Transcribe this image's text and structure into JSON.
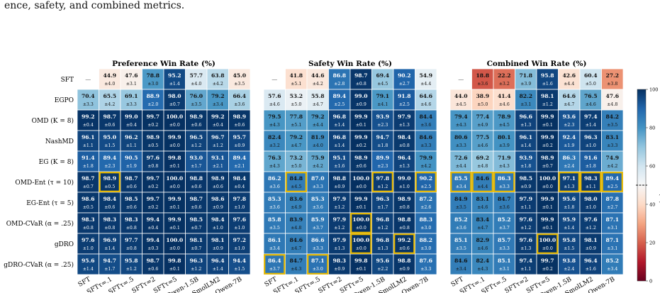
{
  "caption": "ence, safety, and combined metrics.",
  "row_labels": [
    "SFT",
    "EGPO",
    "OMD (K = 8)",
    "NashMD",
    "EG (K = 8)",
    "OMD-Ent (τ = 10)",
    "EG-Ent (τ = 5)",
    "OMD-CVaR (α = .25)",
    "gDRO",
    "gDRO-CVaR (α = .25)"
  ],
  "col_labels": [
    "SFT",
    "SFTτ=.1",
    "SFTτ=.5",
    "SFTτ=2",
    "SFTτ=5",
    "Qwen-1.5B",
    "SmolLM2",
    "Qwen-7B"
  ],
  "colorbar": {
    "label": "Win rate (%)",
    "ticks": [
      "0",
      "20",
      "40",
      "60",
      "80",
      "100"
    ],
    "range": [
      0,
      100
    ],
    "midline": 50
  },
  "highlight_color": "#e6b800",
  "chart_data": [
    {
      "type": "heatmap",
      "title": "Preference Win Rate (%)",
      "values": [
        [
          null,
          44.9,
          47.6,
          78.8,
          95.2,
          57.7,
          63.8,
          45.0
        ],
        [
          70.4,
          65.5,
          69.1,
          88.9,
          98.0,
          76.0,
          79.2,
          66.4
        ],
        [
          99.2,
          98.7,
          99.0,
          99.7,
          100.0,
          98.9,
          99.2,
          98.9
        ],
        [
          96.1,
          95.0,
          96.2,
          98.9,
          99.9,
          96.5,
          96.7,
          95.7
        ],
        [
          91.4,
          89.4,
          90.5,
          97.6,
          99.8,
          93.0,
          93.1,
          89.4
        ],
        [
          98.7,
          98.9,
          98.7,
          99.7,
          100.0,
          98.8,
          98.9,
          98.4
        ],
        [
          98.6,
          98.4,
          98.5,
          99.7,
          99.9,
          98.7,
          98.6,
          97.8
        ],
        [
          98.3,
          98.3,
          98.3,
          99.4,
          99.9,
          98.5,
          98.4,
          97.6
        ],
        [
          97.6,
          96.9,
          97.7,
          99.4,
          100.0,
          98.1,
          98.1,
          97.2
        ],
        [
          95.6,
          94.7,
          95.8,
          98.7,
          99.8,
          96.3,
          96.4,
          94.4
        ]
      ],
      "errors": [
        [
          "—",
          "±4.0",
          "±3.1",
          "±3.0",
          "±1.4",
          "±4.0",
          "±4.2",
          "±3.5"
        ],
        [
          "±3.3",
          "±4.2",
          "±3.3",
          "±2.0",
          "±0.7",
          "±3.5",
          "±3.4",
          "±3.6"
        ],
        [
          "±0.4",
          "±0.6",
          "±0.4",
          "±0.2",
          "±0.0",
          "±0.6",
          "±0.4",
          "±0.6"
        ],
        [
          "±1.1",
          "±1.5",
          "±1.1",
          "±0.5",
          "±0.0",
          "±1.2",
          "±1.2",
          "±0.9"
        ],
        [
          "±1.8",
          "±2.3",
          "±1.9",
          "±0.8",
          "±0.1",
          "±1.7",
          "±2.1",
          "±2.1"
        ],
        [
          "±0.7",
          "±0.5",
          "±0.6",
          "±0.2",
          "±0.0",
          "±0.6",
          "±0.6",
          "±0.4"
        ],
        [
          "±0.5",
          "±0.6",
          "±0.6",
          "±0.2",
          "±0.1",
          "±0.6",
          "±0.9",
          "±1.0"
        ],
        [
          "±0.8",
          "±0.8",
          "±0.8",
          "±0.4",
          "±0.1",
          "±0.7",
          "±1.0",
          "±1.0"
        ],
        [
          "±1.0",
          "±1.4",
          "±0.8",
          "±0.3",
          "±0.0",
          "±0.7",
          "±0.9",
          "±1.0"
        ],
        [
          "±1.4",
          "±1.7",
          "±1.2",
          "±0.6",
          "±0.1",
          "±1.2",
          "±1.4",
          "±1.5"
        ]
      ],
      "highlights": [
        [
          5,
          1
        ]
      ]
    },
    {
      "type": "heatmap",
      "title": "Safety Win Rate (%)",
      "values": [
        [
          null,
          41.8,
          44.6,
          86.8,
          98.7,
          69.4,
          90.2,
          54.9
        ],
        [
          57.6,
          53.2,
          55.8,
          89.4,
          99.0,
          79.1,
          91.8,
          64.6
        ],
        [
          79.5,
          77.8,
          79.2,
          96.8,
          99.9,
          93.9,
          97.9,
          84.4
        ],
        [
          82.4,
          79.2,
          81.9,
          96.8,
          99.9,
          94.7,
          98.4,
          84.6
        ],
        [
          76.3,
          73.2,
          75.9,
          95.1,
          98.9,
          89.9,
          96.4,
          79.9
        ],
        [
          86.2,
          84.8,
          87.0,
          98.8,
          100.0,
          97.8,
          99.0,
          90.2
        ],
        [
          85.3,
          83.6,
          85.3,
          97.9,
          99.9,
          96.3,
          98.9,
          87.2
        ],
        [
          85.8,
          83.9,
          85.9,
          97.9,
          100.0,
          96.8,
          98.8,
          88.3
        ],
        [
          86.1,
          84.6,
          86.6,
          97.9,
          100.0,
          96.8,
          99.2,
          88.2
        ],
        [
          86.4,
          84.7,
          87.1,
          98.3,
          99.8,
          95.6,
          98.8,
          87.6
        ]
      ],
      "errors": [
        [
          "—",
          "±5.1",
          "±4.2",
          "±2.8",
          "±0.8",
          "±4.5",
          "±2.7",
          "±4.4"
        ],
        [
          "±4.6",
          "±5.0",
          "±4.7",
          "±2.5",
          "±0.9",
          "±4.1",
          "±2.5",
          "±4.6"
        ],
        [
          "±4.3",
          "±5.1",
          "±4.4",
          "±1.4",
          "±0.1",
          "±2.3",
          "±1.3",
          "±3.6"
        ],
        [
          "±3.2",
          "±4.7",
          "±4.0",
          "±1.4",
          "±0.2",
          "±1.8",
          "±0.8",
          "±3.3"
        ],
        [
          "±4.3",
          "±5.0",
          "±4.2",
          "±1.6",
          "±0.6",
          "±2.3",
          "±1.3",
          "±4.2"
        ],
        [
          "±3.6",
          "±4.5",
          "±3.3",
          "±0.9",
          "±0.0",
          "±1.2",
          "±1.0",
          "±2.5"
        ],
        [
          "±3.6",
          "±4.9",
          "±3.6",
          "±1.2",
          "±0.1",
          "±1.7",
          "±0.8",
          "±2.6"
        ],
        [
          "±3.5",
          "±4.8",
          "±3.7",
          "±1.2",
          "±0.0",
          "±1.2",
          "±0.8",
          "±3.0"
        ],
        [
          "±3.4",
          "±4.7",
          "±3.3",
          "±1.3",
          "±0.0",
          "±1.3",
          "±0.6",
          "±3.0"
        ],
        [
          "±3.7",
          "±4.3",
          "±3.0",
          "±0.9",
          "±0.1",
          "±2.2",
          "±0.9",
          "±3.3"
        ]
      ],
      "highlights": [
        [
          5,
          1
        ],
        [
          5,
          5
        ],
        [
          5,
          7
        ],
        [
          7,
          4
        ],
        [
          8,
          4
        ],
        [
          8,
          6
        ],
        [
          9,
          0
        ],
        [
          9,
          2
        ]
      ]
    },
    {
      "type": "heatmap",
      "title": "Combined Win Rate (%)",
      "values": [
        [
          null,
          18.8,
          22.2,
          71.8,
          95.8,
          42.6,
          60.4,
          27.2
        ],
        [
          44.0,
          38.9,
          41.4,
          82.2,
          98.1,
          64.6,
          76.5,
          47.6
        ],
        [
          79.4,
          77.4,
          78.9,
          96.6,
          99.9,
          93.6,
          97.4,
          84.2
        ],
        [
          80.6,
          77.5,
          80.1,
          96.1,
          99.9,
          92.4,
          96.3,
          83.1
        ],
        [
          72.6,
          69.2,
          71.9,
          93.9,
          98.9,
          86.3,
          91.6,
          74.9
        ],
        [
          85.5,
          84.6,
          86.3,
          98.5,
          100.0,
          97.1,
          98.3,
          89.4
        ],
        [
          84.9,
          83.1,
          84.7,
          97.9,
          99.9,
          95.6,
          98.0,
          87.8
        ],
        [
          85.2,
          83.4,
          85.2,
          97.6,
          99.9,
          95.9,
          97.6,
          87.1
        ],
        [
          85.1,
          82.9,
          85.7,
          97.6,
          100.0,
          95.8,
          98.1,
          87.1
        ],
        [
          84.6,
          82.4,
          85.1,
          97.4,
          99.7,
          93.8,
          96.4,
          85.2
        ]
      ],
      "errors": [
        [
          "—",
          "±3.6",
          "±3.2",
          "±3.9",
          "±1.6",
          "±4.4",
          "±5.0",
          "±3.8"
        ],
        [
          "±4.5",
          "±5.0",
          "±4.6",
          "±3.1",
          "±1.2",
          "±4.7",
          "±4.6",
          "±4.8"
        ],
        [
          "±4.3",
          "±4.9",
          "±4.5",
          "±1.3",
          "±0.1",
          "±2.3",
          "±1.4",
          "±3.5"
        ],
        [
          "±3.3",
          "±4.6",
          "±3.9",
          "±1.4",
          "±0.2",
          "±1.9",
          "±1.0",
          "±3.3"
        ],
        [
          "±4.4",
          "±4.8",
          "±4.3",
          "±1.8",
          "±0.7",
          "±2.4",
          "±1.8",
          "±4.2"
        ],
        [
          "±3.4",
          "±4.4",
          "±3.3",
          "±0.9",
          "±0.0",
          "±1.3",
          "±1.1",
          "±2.5"
        ],
        [
          "±3.5",
          "±4.6",
          "±3.6",
          "±1.1",
          "±0.1",
          "±1.8",
          "±1.0",
          "±2.7"
        ],
        [
          "±3.6",
          "±4.7",
          "±3.7",
          "±1.2",
          "±0.1",
          "±1.4",
          "±1.2",
          "±3.1"
        ],
        [
          "±3.5",
          "±4.6",
          "±3.3",
          "±1.3",
          "±0.0",
          "±1.5",
          "±0.9",
          "±3.1"
        ],
        [
          "±3.4",
          "±4.3",
          "±3.1",
          "±1.1",
          "±0.2",
          "±2.4",
          "±1.6",
          "±3.4"
        ]
      ],
      "highlights": [
        [
          5,
          0
        ],
        [
          5,
          1
        ],
        [
          5,
          2
        ],
        [
          5,
          5
        ],
        [
          5,
          6
        ],
        [
          5,
          7
        ],
        [
          8,
          4
        ]
      ]
    }
  ]
}
